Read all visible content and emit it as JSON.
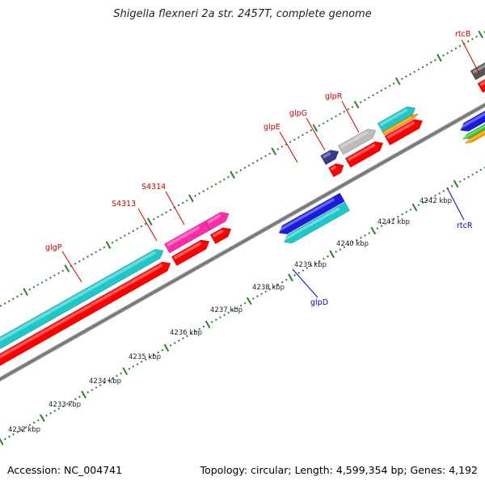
{
  "title": "Shigella flexneri 2a str. 2457T, complete genome",
  "footer": {
    "accession": "Accession: NC_004741",
    "summary": "Topology: circular; Length: 4,599,354 bp; Genes: 4,192"
  },
  "colors": {
    "backbone": "#808080",
    "tick": "#2e7d2e",
    "label_forward": "#cc0000",
    "label_reverse": "#0000cc",
    "cds_red": "#ff0000",
    "cyan": "#1ec8c8",
    "magenta": "#ff2aa8",
    "blue": "#1a1ae0",
    "gray": "#bbbbbb",
    "dark_gray": "#555555",
    "navy": "#3a3a8a",
    "green": "#33cc33",
    "orange": "#ff9900"
  },
  "scale": {
    "unit": "kbp",
    "tick_labels": [
      "4232 kbp",
      "4233 kbp",
      "4234 kbp",
      "4235 kbp",
      "4236 kbp",
      "4237 kbp",
      "4238 kbp",
      "4239 kbp",
      "4240 kbp",
      "4241 kbp",
      "4242 kbp"
    ]
  },
  "gene_labels": [
    {
      "name": "glgP",
      "strand": "forward"
    },
    {
      "name": "S4313",
      "strand": "forward"
    },
    {
      "name": "S4314",
      "strand": "forward"
    },
    {
      "name": "glpE",
      "strand": "forward"
    },
    {
      "name": "glpG",
      "strand": "forward"
    },
    {
      "name": "glpR",
      "strand": "forward"
    },
    {
      "name": "rtcB",
      "strand": "forward"
    },
    {
      "name": "glpD",
      "strand": "reverse"
    },
    {
      "name": "rtcR",
      "strand": "reverse"
    }
  ]
}
